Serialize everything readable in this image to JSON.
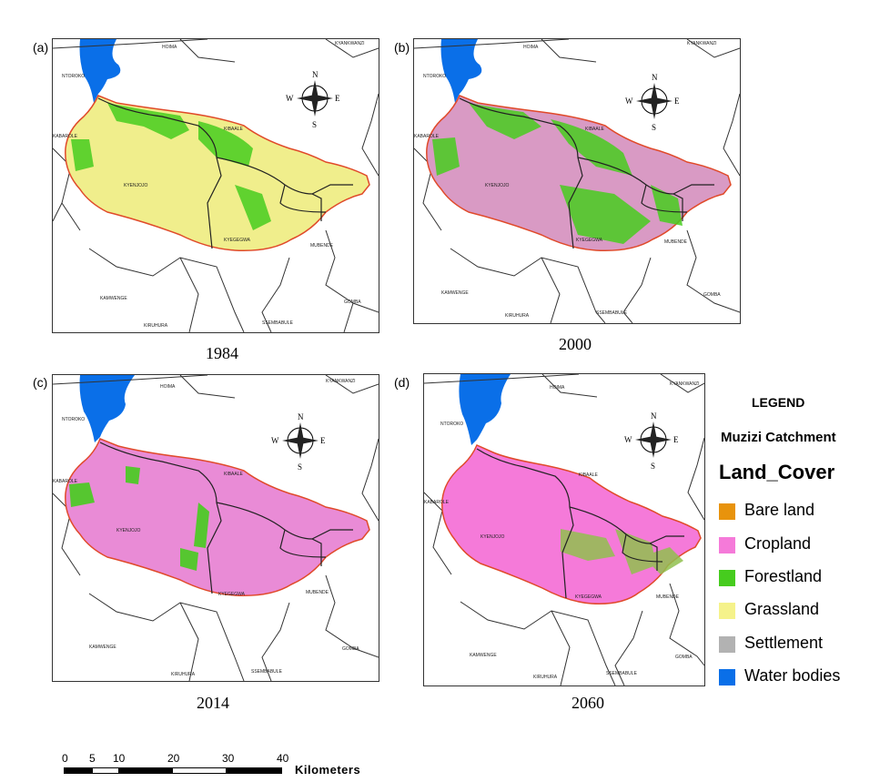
{
  "panels": [
    {
      "letter": "(a)",
      "year": "1984"
    },
    {
      "letter": "(b)",
      "year": "2000"
    },
    {
      "letter": "(c)",
      "year": "2014"
    },
    {
      "letter": "(d)",
      "year": "2060"
    }
  ],
  "places": {
    "hoima": "HOIMA",
    "ntoroko": "NTOROKO",
    "kyankwanzi": "KYANKWANZI",
    "kibaale": "KIBAALE",
    "kabarole": "KABAROLE",
    "kyenjojo": "KYENJOJO",
    "kyegegwa": "KYEGEGWA",
    "mubende": "MUBENDE",
    "kamwenge": "KAMWENGE",
    "gomba": "GOMBA",
    "kiruhura": "KIRUHURA",
    "ssembabule": "SSEMBABULE"
  },
  "compass": {
    "n": "N",
    "s": "S",
    "e": "E",
    "w": "W"
  },
  "legend": {
    "title": "LEGEND",
    "subtitle": "Muzizi Catchment",
    "heading": "Land_Cover",
    "items": [
      {
        "label": "Bare land",
        "color": "#e8930c"
      },
      {
        "label": "Cropland",
        "color": "#f57ad9"
      },
      {
        "label": "Forestland",
        "color": "#46cc1e"
      },
      {
        "label": "Grassland",
        "color": "#f5f28a"
      },
      {
        "label": "Settlement",
        "color": "#b2b2b2"
      },
      {
        "label": "Water bodies",
        "color": "#0a6fe8"
      }
    ]
  },
  "scale": {
    "ticks": [
      "0",
      "5",
      "10",
      "20",
      "30",
      "40"
    ],
    "unit": "Kilometers"
  },
  "colors": {
    "water": "#0a6fe8",
    "boundary": "#e04a2a",
    "crop_1984": "#f0ee8c",
    "crop_2000": "#d99ac4",
    "crop_2014": "#e98bd6",
    "crop_2060": "#f57ad9"
  }
}
